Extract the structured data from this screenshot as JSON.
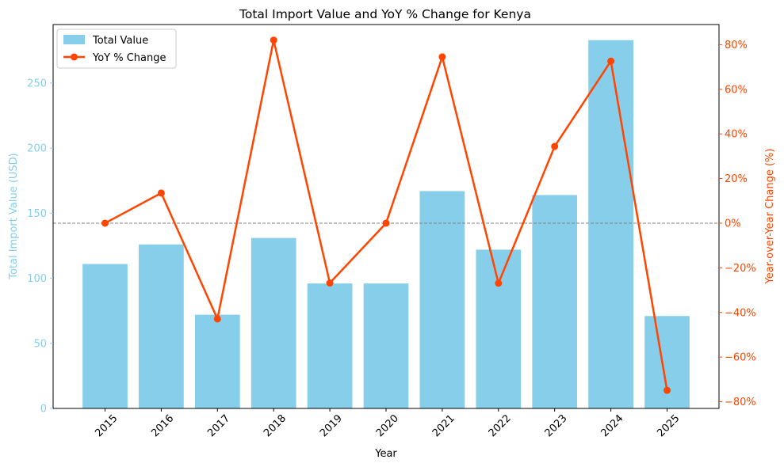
{
  "chart_data": {
    "type": "bar+line",
    "title": "Total Import Value and YoY % Change for Kenya",
    "xlabel": "Year",
    "ylabel_left": "Total Import Value (USD)",
    "ylabel_right": "Year-over-Year Change (%)",
    "categories": [
      "2015",
      "2016",
      "2017",
      "2018",
      "2019",
      "2020",
      "2021",
      "2022",
      "2023",
      "2024",
      "2025"
    ],
    "series": [
      {
        "name": "Total Value",
        "type": "bar",
        "axis": "left",
        "color": "#87ceeb",
        "values": [
          111,
          126,
          72,
          131,
          96,
          96,
          167,
          122,
          164,
          283,
          71
        ]
      },
      {
        "name": "YoY % Change",
        "type": "line",
        "axis": "right",
        "color": "#ff4500",
        "values": [
          0,
          13.5,
          -42.9,
          82.0,
          -26.8,
          0,
          74.5,
          -26.9,
          34.4,
          72.6,
          -74.9
        ]
      }
    ],
    "ylim_left": [
      0,
      295
    ],
    "yticks_left": [
      0,
      50,
      100,
      150,
      200,
      250
    ],
    "ylim_right": [
      -83,
      89
    ],
    "yticks_right": [
      -80,
      -60,
      -40,
      -20,
      0,
      20,
      40,
      60,
      80
    ],
    "ytick_right_labels": [
      "−80%",
      "−60%",
      "−40%",
      "−20%",
      "0%",
      "20%",
      "40%",
      "60%",
      "80%"
    ],
    "reference_line": {
      "axis": "right",
      "value": 0,
      "style": "dashed",
      "color": "#808080"
    },
    "legend_position": "top-left",
    "grid": false,
    "left_axis_color": "#87ceeb",
    "right_axis_color": "#ff4500"
  }
}
